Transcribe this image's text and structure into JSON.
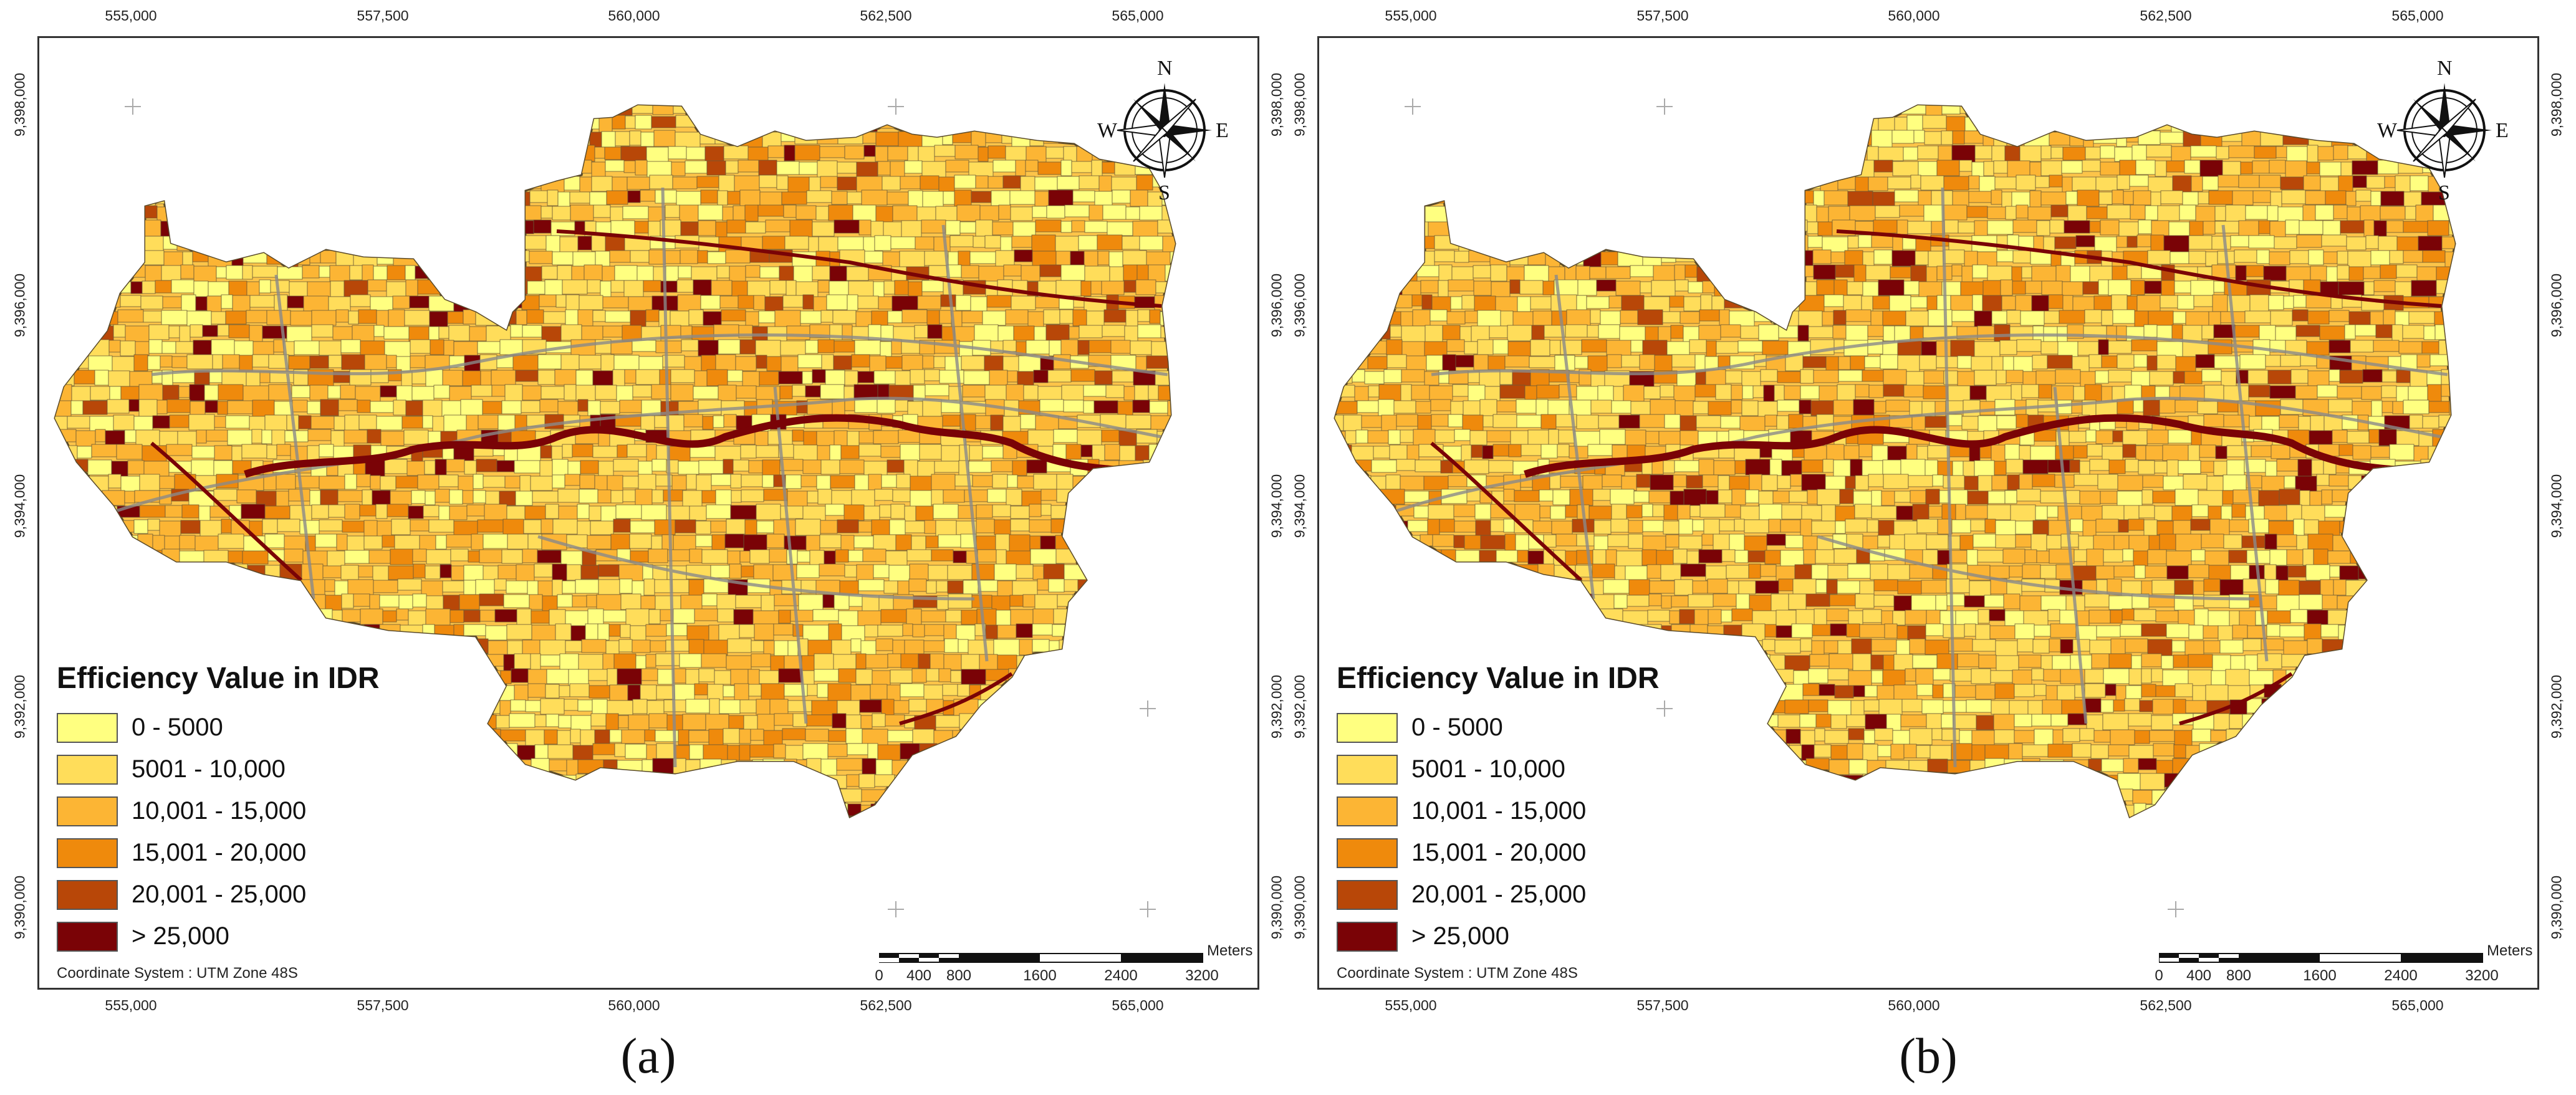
{
  "panels": [
    {
      "label": "(a)",
      "legend": {
        "title": "Efficiency Value in IDR",
        "classes": [
          {
            "label": "0 - 5000",
            "color": "#ffff80"
          },
          {
            "label": "5001 - 10,000",
            "color": "#ffdd5a"
          },
          {
            "label": "10,001 - 15,000",
            "color": "#fcb534"
          },
          {
            "label": "15,001 - 20,000",
            "color": "#ef8a0c"
          },
          {
            "label": "20,001 - 25,000",
            "color": "#b84708"
          },
          {
            "label": "> 25,000",
            "color": "#7a0306"
          }
        ]
      },
      "coordinate_system": "Coordinate System : UTM Zone 48S",
      "scalebar": {
        "unit": "Meters",
        "labels": [
          "0",
          "400",
          "800",
          "1600",
          "2400",
          "3200"
        ]
      },
      "compass": {
        "n": "N",
        "s": "S",
        "e": "E",
        "w": "W"
      },
      "x_ticks": [
        "555,000",
        "557,500",
        "560,000",
        "562,500",
        "565,000"
      ],
      "y_ticks": [
        "9,398,000",
        "9,396,000",
        "9,394,000",
        "9,392,000",
        "9,390,000"
      ]
    },
    {
      "label": "(b)",
      "legend": {
        "title": "Efficiency Value in IDR",
        "classes": [
          {
            "label": "0 - 5000",
            "color": "#ffff80"
          },
          {
            "label": "5001 - 10,000",
            "color": "#ffdd5a"
          },
          {
            "label": "10,001 - 15,000",
            "color": "#fcb534"
          },
          {
            "label": "15,001 - 20,000",
            "color": "#ef8a0c"
          },
          {
            "label": "20,001 - 25,000",
            "color": "#b84708"
          },
          {
            "label": "> 25,000",
            "color": "#7a0306"
          }
        ]
      },
      "coordinate_system": "Coordinate System : UTM Zone 48S",
      "scalebar": {
        "unit": "Meters",
        "labels": [
          "0",
          "400",
          "800",
          "1600",
          "2400",
          "3200"
        ]
      },
      "compass": {
        "n": "N",
        "s": "S",
        "e": "E",
        "w": "W"
      },
      "x_ticks": [
        "555,000",
        "557,500",
        "560,000",
        "562,500",
        "565,000"
      ],
      "y_ticks": [
        "9,398,000",
        "9,396,000",
        "9,394,000",
        "9,392,000",
        "9,390,000"
      ]
    }
  ]
}
